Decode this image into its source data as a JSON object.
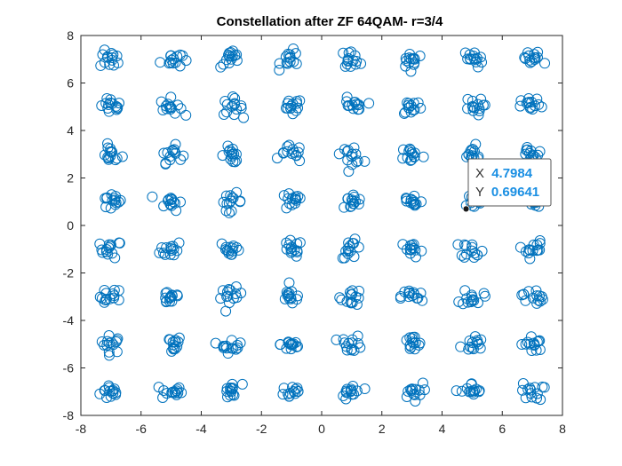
{
  "chart_data": {
    "type": "scatter",
    "title": "Constellation after ZF 64QAM- r=3/4",
    "xlabel": "",
    "ylabel": "",
    "xlim": [
      -8,
      8
    ],
    "ylim": [
      -8,
      8
    ],
    "xticks": [
      "-8",
      "-6",
      "-4",
      "-2",
      "0",
      "2",
      "4",
      "6",
      "8"
    ],
    "yticks": [
      "8",
      "6",
      "4",
      "2",
      "0",
      "-2",
      "-4",
      "-6",
      "-8"
    ],
    "grid": false,
    "marker": "open-circle",
    "series_color": "#0072bd",
    "constellation": {
      "order": 64,
      "levels": [
        -7,
        -5,
        -3,
        -1,
        1,
        3,
        5,
        7
      ],
      "spread": 0.18,
      "points_per_symbol": 14
    },
    "datatip": {
      "x_label": "X",
      "x_value": "4.7984",
      "y_label": "Y",
      "y_value": "0.69641",
      "point": [
        4.7984,
        0.69641
      ]
    }
  }
}
